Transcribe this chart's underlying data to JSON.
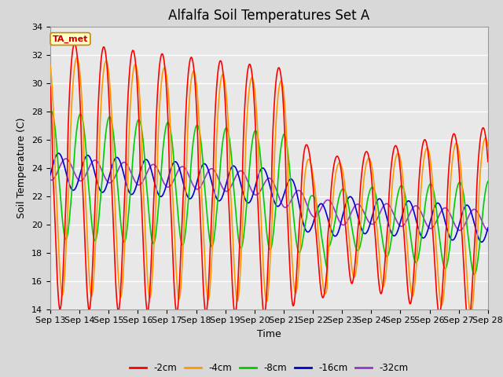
{
  "title": "Alfalfa Soil Temperatures Set A",
  "xlabel": "Time",
  "ylabel": "Soil Temperature (C)",
  "ylim": [
    14,
    34
  ],
  "yticks": [
    14,
    16,
    18,
    20,
    22,
    24,
    26,
    28,
    30,
    32,
    34
  ],
  "xtick_labels": [
    "Sep 13",
    "Sep 14",
    "Sep 15",
    "Sep 16",
    "Sep 17",
    "Sep 18",
    "Sep 19",
    "Sep 20",
    "Sep 21",
    "Sep 22",
    "Sep 23",
    "Sep 24",
    "Sep 25",
    "Sep 26",
    "Sep 27",
    "Sep 28"
  ],
  "annotation_text": "TA_met",
  "annotation_bg": "#ffffcc",
  "annotation_border": "#cc8800",
  "colors": {
    "-2cm": "#ff0000",
    "-4cm": "#ff9900",
    "-8cm": "#00cc00",
    "-16cm": "#0000cc",
    "-32cm": "#9933cc"
  },
  "line_width": 1.2,
  "background_color": "#d8d8d8",
  "plot_bg": "#e8e8e8",
  "n_days": 15,
  "title_fontsize": 12,
  "axis_label_fontsize": 9,
  "tick_fontsize": 8
}
